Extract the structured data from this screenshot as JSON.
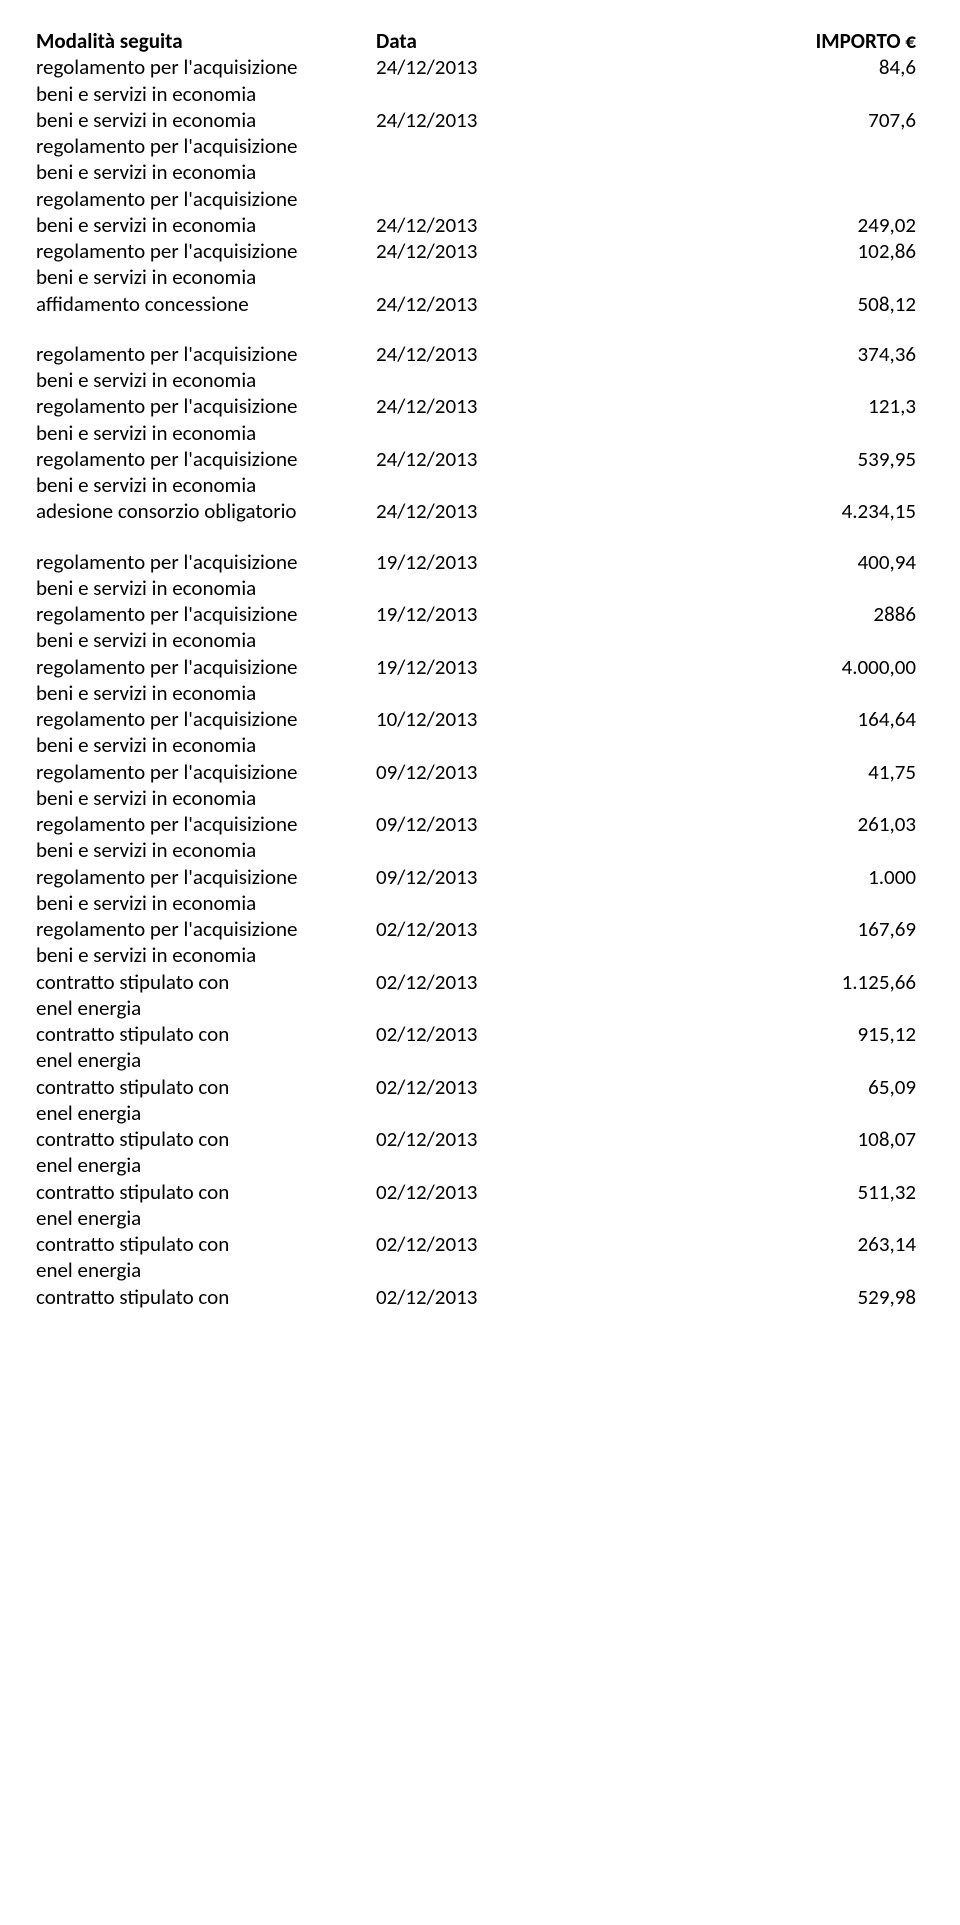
{
  "labels": {
    "modalita": "Modalità seguita",
    "data": "Data",
    "importo": "IMPORTO €",
    "regolamento": "regolamento per l'acquisizione",
    "beni": "beni e servizi in economia",
    "affidamento": "affidamento concessione",
    "adesione": "adesione consorzio obligatorio",
    "contratto": "contratto stipulato con",
    "enel": "enel energia"
  },
  "rows": [
    {
      "type": "reg_beni",
      "date": "24/12/2013",
      "value": "84,6"
    },
    {
      "type": "beni_only",
      "date": "24/12/2013",
      "value": "707,6"
    },
    {
      "type": "reg_empty",
      "date": "",
      "value": ""
    },
    {
      "type": "beni_empty",
      "date": "",
      "value": ""
    },
    {
      "type": "reg_empty",
      "date": "",
      "value": ""
    },
    {
      "type": "beni_only",
      "date": "24/12/2013",
      "value": "249,02"
    },
    {
      "type": "reg_only",
      "date": "24/12/2013",
      "value": "102,86"
    },
    {
      "type": "beni_empty",
      "date": "",
      "value": ""
    },
    {
      "type": "affid",
      "date": "24/12/2013",
      "value": "508,12"
    },
    {
      "type": "gap"
    },
    {
      "type": "reg_beni",
      "date": "24/12/2013",
      "value": "374,36"
    },
    {
      "type": "reg_beni",
      "date": "24/12/2013",
      "value": "121,3"
    },
    {
      "type": "reg_beni",
      "date": "24/12/2013",
      "value": "539,95"
    },
    {
      "type": "adesione",
      "date": "24/12/2013",
      "value": "4.234,15"
    },
    {
      "type": "gap"
    },
    {
      "type": "reg_beni",
      "date": "19/12/2013",
      "value": "400,94"
    },
    {
      "type": "reg_beni",
      "date": "19/12/2013",
      "value": "2886"
    },
    {
      "type": "reg_beni",
      "date": "19/12/2013",
      "value": "4.000,00"
    },
    {
      "type": "reg_beni",
      "date": "10/12/2013",
      "value": "164,64"
    },
    {
      "type": "reg_beni",
      "date": "09/12/2013",
      "value": "41,75"
    },
    {
      "type": "reg_beni",
      "date": "09/12/2013",
      "value": "261,03"
    },
    {
      "type": "reg_beni",
      "date": "09/12/2013",
      "value": "1.000"
    },
    {
      "type": "reg_beni",
      "date": "02/12/2013",
      "value": "167,69"
    },
    {
      "type": "contratto",
      "date": "02/12/2013",
      "value": "1.125,66"
    },
    {
      "type": "contratto",
      "date": "02/12/2013",
      "value": "915,12"
    },
    {
      "type": "contratto",
      "date": "02/12/2013",
      "value": "65,09"
    },
    {
      "type": "contratto",
      "date": "02/12/2013",
      "value": "108,07"
    },
    {
      "type": "contratto",
      "date": "02/12/2013",
      "value": "511,32"
    },
    {
      "type": "contratto",
      "date": "02/12/2013",
      "value": "263,14"
    },
    {
      "type": "contratto_last",
      "date": "02/12/2013",
      "value": "529,98"
    }
  ]
}
